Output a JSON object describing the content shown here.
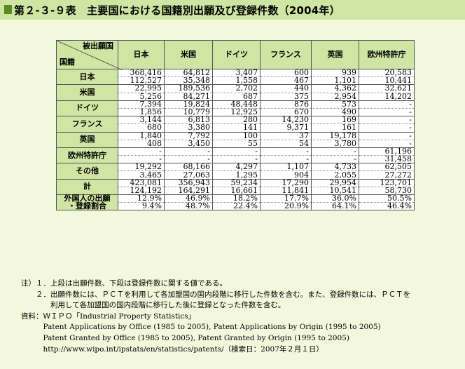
{
  "title": "第２-３-９表　主要国における国籍別出願及び登録件数（2004年）",
  "table": {
    "corner_top": "被出願国",
    "corner_bottom": "国籍",
    "columns": [
      "日本",
      "米国",
      "ドイツ",
      "フランス",
      "英国",
      "欧州特許庁"
    ],
    "rows": [
      {
        "label": "日本",
        "upper": [
          "368,416",
          "64,812",
          "3,407",
          "600",
          "939",
          "20,583"
        ],
        "lower": [
          "112,527",
          "35,348",
          "1,558",
          "467",
          "1,101",
          "10,441"
        ]
      },
      {
        "label": "米国",
        "upper": [
          "22,995",
          "189,536",
          "2,702",
          "440",
          "4,362",
          "32,621"
        ],
        "lower": [
          "5,256",
          "84,271",
          "687",
          "375",
          "2,954",
          "14,202"
        ]
      },
      {
        "label": "ドイツ",
        "upper": [
          "7,394",
          "19,824",
          "48,448",
          "876",
          "573",
          "-"
        ],
        "lower": [
          "1,856",
          "10,779",
          "12,925",
          "670",
          "490",
          "-"
        ]
      },
      {
        "label": "フランス",
        "upper": [
          "3,144",
          "6,813",
          "280",
          "14,230",
          "169",
          "-"
        ],
        "lower": [
          "680",
          "3,380",
          "141",
          "9,371",
          "161",
          "-"
        ]
      },
      {
        "label": "英国",
        "upper": [
          "1,840",
          "7,792",
          "100",
          "37",
          "19,178",
          "-"
        ],
        "lower": [
          "408",
          "3,450",
          "55",
          "54",
          "3,780",
          "-"
        ]
      },
      {
        "label": "欧州特許庁",
        "upper": [
          "-",
          "-",
          "-",
          "-",
          "-",
          "61,196"
        ],
        "lower": [
          "-",
          "-",
          "-",
          "-",
          "-",
          "31,458"
        ]
      },
      {
        "label": "その他",
        "upper": [
          "19,292",
          "68,166",
          "4,297",
          "1,107",
          "4,733",
          "62,505"
        ],
        "lower": [
          "3,465",
          "27,063",
          "1,295",
          "904",
          "2,055",
          "27,272"
        ]
      },
      {
        "label": "計",
        "upper": [
          "423,081",
          "356,943",
          "59,234",
          "17,290",
          "29,954",
          "123,701"
        ],
        "lower": [
          "124,192",
          "164,291",
          "16,661",
          "11,841",
          "10,541",
          "58,730"
        ]
      }
    ],
    "foreign_row": {
      "label_line1": "外国人の出願",
      "label_line2": "・登録割合",
      "upper": [
        "12.9%",
        "46.9%",
        "18.2%",
        "17.7%",
        "36.0%",
        "50.5%"
      ],
      "lower": [
        "9.4%",
        "48.7%",
        "22.4%",
        "20.9%",
        "64.1%",
        "46.4%"
      ]
    }
  },
  "notes": {
    "line1": "注）１．上段は出願件数、下段は登録件数に関する値である。",
    "line2": "　　２．出願件数には、ＰＣＴを利用して各加盟国の国内段階に移行した件数を含む。また、登録件数には、ＰＣＴを",
    "line3": "　　　　利用して各加盟国の国内段階に移行した後に登録となった件数を含む。",
    "line4": "資料：ＷＩＰＯ「Industrial Property Statistics」",
    "line5": "　　　Patent Applications by Office (1985 to 2005), Patent Applications by Origin (1995 to 2005)",
    "line6": "　　　Patent Granted by Office (1985 to 2005), Patent Granted by Origin (1995 to 2005)",
    "line7": "　　　http://www.wipo.int/ipstats/en/statistics/patents/（検索日：2007年２月１日）"
  }
}
